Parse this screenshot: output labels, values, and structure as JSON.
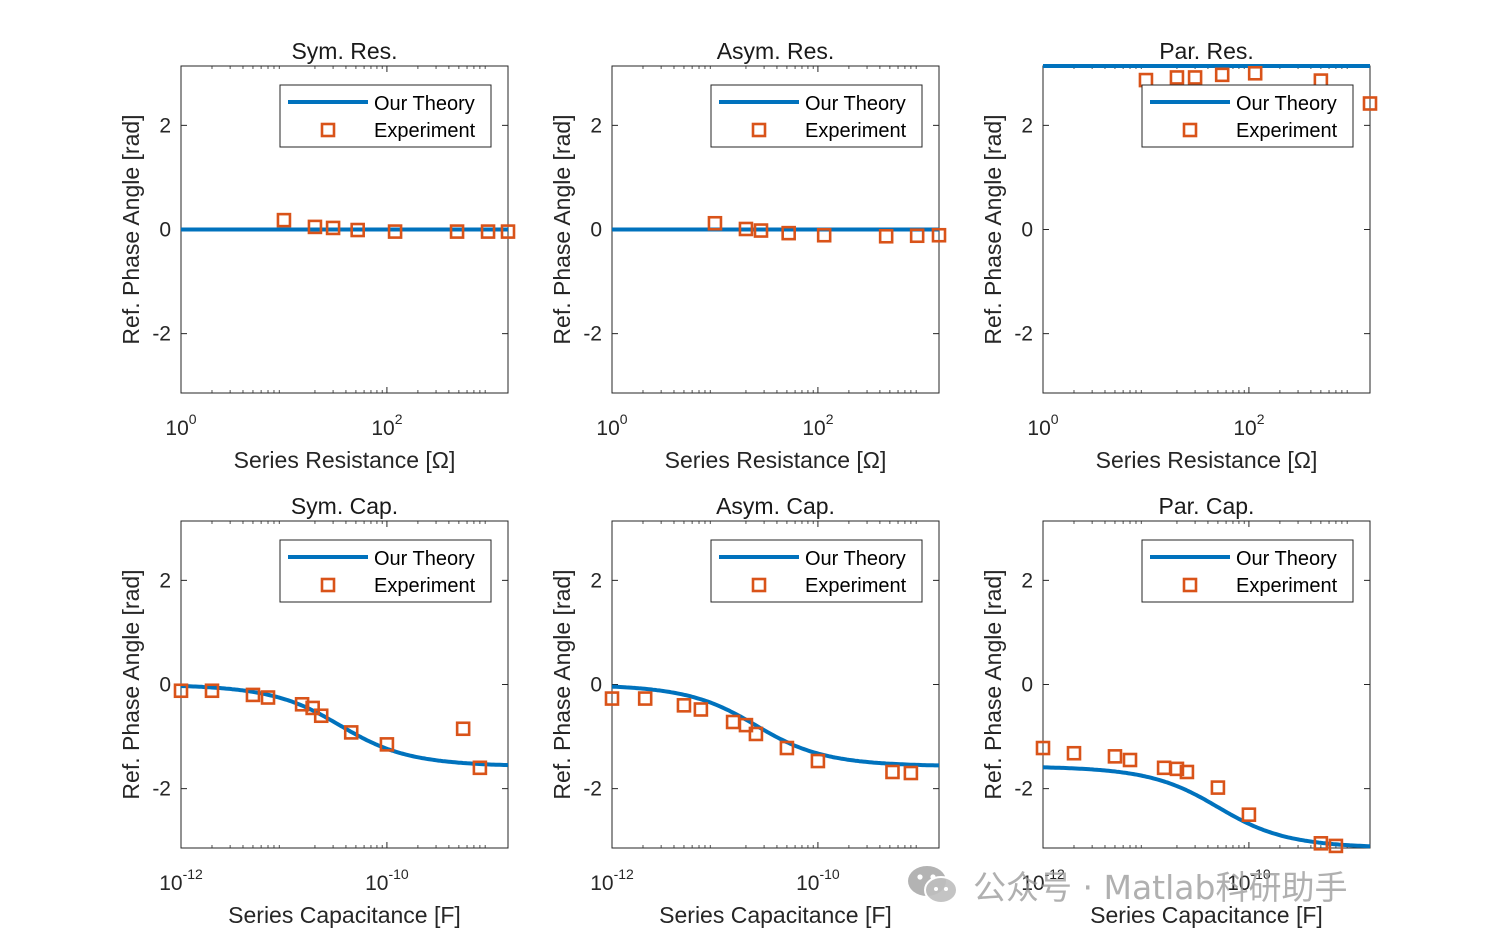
{
  "chart_data": [
    {
      "type": "line+scatter",
      "title": "Sym. Res.",
      "xlabel": "Series Resistance [Ω]",
      "ylabel": "Ref. Phase Angle [rad]",
      "xscale": "log",
      "xlim": [
        1,
        1500
      ],
      "ylim": [
        -3.14,
        3.14
      ],
      "xticks": [
        {
          "base": "10",
          "exp": "0",
          "value": 1
        },
        {
          "base": "10",
          "exp": "2",
          "value": 100
        }
      ],
      "yticks": [
        -2,
        0,
        2
      ],
      "legend": {
        "position": "top-right",
        "entries": [
          "Our Theory",
          "Experiment"
        ]
      },
      "series": [
        {
          "name": "Our Theory",
          "kind": "line",
          "x": [
            1,
            1500
          ],
          "y": [
            0,
            0
          ]
        },
        {
          "name": "Experiment",
          "kind": "marker",
          "x": [
            10,
            20,
            30,
            52,
            120,
            480,
            960,
            1500
          ],
          "y": [
            0.18,
            0.05,
            0.03,
            -0.01,
            -0.04,
            -0.04,
            -0.04,
            -0.04
          ]
        }
      ]
    },
    {
      "type": "line+scatter",
      "title": "Asym. Res.",
      "xlabel": "Series Resistance [Ω]",
      "ylabel": "Ref. Phase Angle [rad]",
      "xscale": "log",
      "xlim": [
        1,
        1500
      ],
      "ylim": [
        -3.14,
        3.14
      ],
      "xticks": [
        {
          "base": "10",
          "exp": "0",
          "value": 1
        },
        {
          "base": "10",
          "exp": "2",
          "value": 100
        }
      ],
      "yticks": [
        -2,
        0,
        2
      ],
      "legend": {
        "position": "top-right",
        "entries": [
          "Our Theory",
          "Experiment"
        ]
      },
      "series": [
        {
          "name": "Our Theory",
          "kind": "line",
          "x": [
            1,
            1500
          ],
          "y": [
            0,
            0
          ]
        },
        {
          "name": "Experiment",
          "kind": "marker",
          "x": [
            10,
            20,
            28,
            52,
            115,
            460,
            920,
            1500
          ],
          "y": [
            0.12,
            0.01,
            -0.02,
            -0.07,
            -0.11,
            -0.13,
            -0.12,
            -0.11
          ]
        }
      ]
    },
    {
      "type": "line+scatter",
      "title": "Par. Res.",
      "xlabel": "Series Resistance [Ω]",
      "ylabel": "Ref. Phase Angle [rad]",
      "xscale": "log",
      "xlim": [
        1,
        1500
      ],
      "ylim": [
        -3.14,
        3.14
      ],
      "xticks": [
        {
          "base": "10",
          "exp": "0",
          "value": 1
        },
        {
          "base": "10",
          "exp": "2",
          "value": 100
        }
      ],
      "yticks": [
        -2,
        0,
        2
      ],
      "legend": {
        "position": "top-right",
        "entries": [
          "Our Theory",
          "Experiment"
        ]
      },
      "series": [
        {
          "name": "Our Theory",
          "kind": "line",
          "x": [
            1,
            1500
          ],
          "y": [
            3.14,
            3.14
          ]
        },
        {
          "name": "Experiment",
          "kind": "marker",
          "x": [
            10,
            20,
            30,
            55,
            115,
            500,
            1500
          ],
          "y": [
            2.87,
            2.92,
            2.92,
            2.97,
            3.0,
            2.86,
            2.42
          ]
        }
      ]
    },
    {
      "type": "line+scatter",
      "title": "Sym. Cap.",
      "xlabel": "Series Capacitance [F]",
      "ylabel": "Ref. Phase Angle [rad]",
      "xscale": "log",
      "xlim": [
        1e-12,
        1.5e-09
      ],
      "ylim": [
        -3.14,
        3.14
      ],
      "xticks": [
        {
          "base": "10",
          "exp": "-12",
          "value": 1e-12
        },
        {
          "base": "10",
          "exp": "-10",
          "value": 1e-10
        }
      ],
      "yticks": [
        -2,
        0,
        2
      ],
      "legend": {
        "position": "top-right",
        "entries": [
          "Our Theory",
          "Experiment"
        ]
      },
      "series": [
        {
          "name": "Our Theory",
          "kind": "line",
          "model": {
            "phi0": 0,
            "phi1": -1.571,
            "c0": 3.5e-11
          }
        },
        {
          "name": "Experiment",
          "kind": "marker",
          "x": [
            1e-12,
            2e-12,
            5e-12,
            7e-12,
            1.5e-11,
            1.9e-11,
            2.3e-11,
            4.5e-11,
            1e-10,
            5.5e-10,
            8e-10
          ],
          "y": [
            -0.12,
            -0.12,
            -0.2,
            -0.25,
            -0.38,
            -0.45,
            -0.6,
            -0.92,
            -1.15,
            -0.85,
            -1.6
          ]
        }
      ]
    },
    {
      "type": "line+scatter",
      "title": "Asym. Cap.",
      "xlabel": "Series Capacitance [F]",
      "ylabel": "Ref. Phase Angle [rad]",
      "xscale": "log",
      "xlim": [
        1e-12,
        1.5e-09
      ],
      "ylim": [
        -3.14,
        3.14
      ],
      "xticks": [
        {
          "base": "10",
          "exp": "-12",
          "value": 1e-12
        },
        {
          "base": "10",
          "exp": "-10",
          "value": 1e-10
        }
      ],
      "yticks": [
        -2,
        0,
        2
      ],
      "legend": {
        "position": "top-right",
        "entries": [
          "Our Theory",
          "Experiment"
        ]
      },
      "series": [
        {
          "name": "Our Theory",
          "kind": "line",
          "model": {
            "phi0": 0,
            "phi1": -1.571,
            "c0": 2.5e-11
          }
        },
        {
          "name": "Experiment",
          "kind": "marker",
          "x": [
            1e-12,
            2.1e-12,
            5e-12,
            7.3e-12,
            1.5e-11,
            2e-11,
            2.5e-11,
            5e-11,
            1e-10,
            5.3e-10,
            8e-10
          ],
          "y": [
            -0.27,
            -0.27,
            -0.4,
            -0.48,
            -0.72,
            -0.78,
            -0.95,
            -1.22,
            -1.47,
            -1.68,
            -1.7
          ]
        }
      ]
    },
    {
      "type": "line+scatter",
      "title": "Par. Cap.",
      "xlabel": "Series Capacitance [F]",
      "ylabel": "Ref. Phase Angle [rad]",
      "xscale": "log",
      "xlim": [
        1e-12,
        1.5e-09
      ],
      "ylim": [
        -3.14,
        3.14
      ],
      "xticks": [
        {
          "base": "10",
          "exp": "-12",
          "value": 1e-12
        },
        {
          "base": "10",
          "exp": "-10",
          "value": 1e-10
        }
      ],
      "yticks": [
        -2,
        0,
        2
      ],
      "legend": {
        "position": "top-right",
        "entries": [
          "Our Theory",
          "Experiment"
        ]
      },
      "series": [
        {
          "name": "Our Theory",
          "kind": "line",
          "model": {
            "phi0": -1.571,
            "phi1": -3.14,
            "c0": 5e-11
          }
        },
        {
          "name": "Experiment",
          "kind": "marker",
          "x": [
            1e-12,
            2e-12,
            5e-12,
            7e-12,
            1.5e-11,
            2e-11,
            2.5e-11,
            5e-11,
            1e-10,
            5e-10,
            7e-10
          ],
          "y": [
            -1.22,
            -1.32,
            -1.38,
            -1.45,
            -1.6,
            -1.62,
            -1.68,
            -1.98,
            -2.5,
            -3.05,
            -3.1
          ]
        }
      ]
    }
  ],
  "colors": {
    "theory": "#0072BD",
    "experiment": "#D95319",
    "axes": "#262626"
  },
  "watermark": {
    "icon": "wechat-icon",
    "text": "公众号 · Matlab科研助手"
  }
}
